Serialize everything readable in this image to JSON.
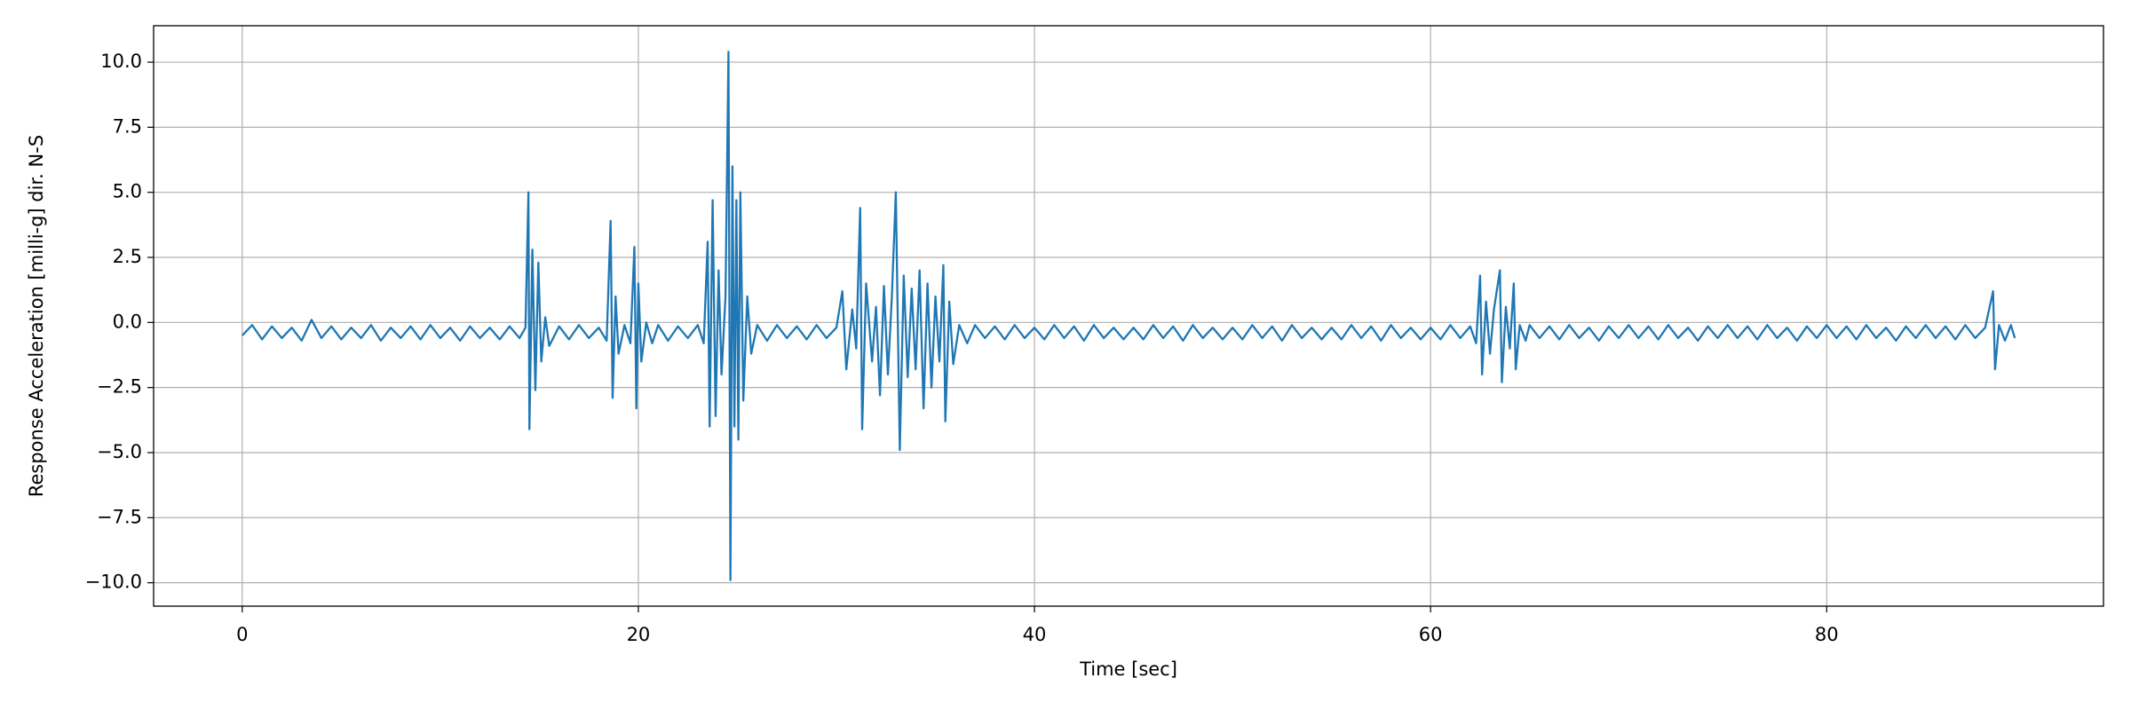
{
  "chart_data": {
    "type": "line",
    "xlabel": "Time [sec]",
    "ylabel": "Response Acceleration [milli-g] dir. N-S",
    "xlim": [
      -4.475,
      93.975
    ],
    "ylim": [
      -10.9,
      11.4
    ],
    "xticks": [
      0,
      20,
      40,
      60,
      80
    ],
    "yticks": [
      {
        "value": -10,
        "label": "−10.0"
      },
      {
        "value": -7.5,
        "label": "−7.5"
      },
      {
        "value": -5,
        "label": "−5.0"
      },
      {
        "value": -2.5,
        "label": "−2.5"
      },
      {
        "value": 0,
        "label": "0.0"
      },
      {
        "value": 2.5,
        "label": "2.5"
      },
      {
        "value": 5,
        "label": "5.0"
      },
      {
        "value": 7.5,
        "label": "7.5"
      },
      {
        "value": 10,
        "label": "10.0"
      }
    ],
    "grid": true,
    "series": [
      {
        "color": "#1f77b4",
        "x": [
          0,
          0.5,
          1,
          1.5,
          2,
          2.5,
          3,
          3.5,
          4,
          4.5,
          5,
          5.5,
          6,
          6.5,
          7,
          7.5,
          8,
          8.5,
          9,
          9.5,
          10,
          10.5,
          11,
          11.5,
          12,
          12.5,
          13,
          13.5,
          14,
          14.3,
          14.45,
          14.5,
          14.65,
          14.8,
          14.95,
          15.1,
          15.3,
          15.5,
          16,
          16.5,
          17,
          17.5,
          18,
          18.4,
          18.6,
          18.7,
          18.85,
          19,
          19.3,
          19.6,
          19.8,
          19.9,
          20,
          20.15,
          20.4,
          20.7,
          21,
          21.5,
          22,
          22.5,
          23,
          23.3,
          23.5,
          23.6,
          23.75,
          23.9,
          24.05,
          24.2,
          24.4,
          24.55,
          24.65,
          24.75,
          24.85,
          24.95,
          25.05,
          25.15,
          25.3,
          25.5,
          25.7,
          26,
          26.5,
          27,
          27.5,
          28,
          28.5,
          29,
          29.5,
          30,
          30.3,
          30.5,
          30.8,
          31,
          31.2,
          31.3,
          31.5,
          31.8,
          32,
          32.2,
          32.4,
          32.6,
          32.8,
          33,
          33.2,
          33.4,
          33.6,
          33.8,
          34,
          34.2,
          34.4,
          34.6,
          34.8,
          35,
          35.2,
          35.4,
          35.5,
          35.7,
          35.9,
          36.2,
          36.6,
          37,
          37.5,
          38,
          38.5,
          39,
          39.5,
          40,
          40.5,
          41,
          41.5,
          42,
          42.5,
          43,
          43.5,
          44,
          44.5,
          45,
          45.5,
          46,
          46.5,
          47,
          47.5,
          48,
          48.5,
          49,
          49.5,
          50,
          50.5,
          51,
          51.5,
          52,
          52.5,
          53,
          53.5,
          54,
          54.5,
          55,
          55.5,
          56,
          56.5,
          57,
          57.5,
          58,
          58.5,
          59,
          59.5,
          60,
          60.5,
          61,
          61.5,
          62,
          62.3,
          62.5,
          62.6,
          62.8,
          63,
          63.2,
          63.5,
          63.6,
          63.8,
          64,
          64.2,
          64.3,
          64.5,
          64.8,
          65,
          65.5,
          66,
          66.5,
          67,
          67.5,
          68,
          68.5,
          69,
          69.5,
          70,
          70.5,
          71,
          71.5,
          72,
          72.5,
          73,
          73.5,
          74,
          74.5,
          75,
          75.5,
          76,
          76.5,
          77,
          77.5,
          78,
          78.5,
          79,
          79.5,
          80,
          80.5,
          81,
          81.5,
          82,
          82.5,
          83,
          83.5,
          84,
          84.5,
          85,
          85.5,
          86,
          86.5,
          87,
          87.5,
          88,
          88.4,
          88.5,
          88.7,
          89,
          89.3,
          89.5
        ],
        "values": [
          -0.5,
          -0.1,
          -0.65,
          -0.15,
          -0.6,
          -0.2,
          -0.7,
          0.1,
          -0.6,
          -0.15,
          -0.65,
          -0.2,
          -0.6,
          -0.1,
          -0.7,
          -0.2,
          -0.6,
          -0.15,
          -0.65,
          -0.1,
          -0.6,
          -0.2,
          -0.7,
          -0.15,
          -0.6,
          -0.2,
          -0.65,
          -0.15,
          -0.6,
          -0.2,
          5.0,
          -4.1,
          2.8,
          -2.6,
          2.3,
          -1.5,
          0.2,
          -0.9,
          -0.15,
          -0.65,
          -0.1,
          -0.6,
          -0.2,
          -0.7,
          3.9,
          -2.9,
          1.0,
          -1.2,
          -0.1,
          -0.8,
          2.9,
          -3.3,
          1.5,
          -1.5,
          0.0,
          -0.8,
          -0.1,
          -0.7,
          -0.15,
          -0.6,
          -0.1,
          -0.8,
          3.1,
          -4.0,
          4.7,
          -3.6,
          2.0,
          -2.0,
          1.0,
          10.4,
          -9.9,
          6.0,
          -4.0,
          4.7,
          -4.5,
          5.0,
          -3.0,
          1.0,
          -1.2,
          -0.1,
          -0.7,
          -0.1,
          -0.6,
          -0.15,
          -0.65,
          -0.1,
          -0.6,
          -0.2,
          1.2,
          -1.8,
          0.5,
          -1.0,
          4.4,
          -4.1,
          1.5,
          -1.5,
          0.6,
          -2.8,
          1.4,
          -2.0,
          1.0,
          5.0,
          -4.9,
          1.8,
          -2.1,
          1.3,
          -1.8,
          2.0,
          -3.3,
          1.5,
          -2.5,
          1.0,
          -1.5,
          2.2,
          -3.8,
          0.8,
          -1.6,
          -0.1,
          -0.8,
          -0.1,
          -0.6,
          -0.15,
          -0.65,
          -0.1,
          -0.6,
          -0.2,
          -0.65,
          -0.1,
          -0.6,
          -0.15,
          -0.7,
          -0.1,
          -0.6,
          -0.2,
          -0.65,
          -0.2,
          -0.65,
          -0.1,
          -0.6,
          -0.15,
          -0.7,
          -0.1,
          -0.6,
          -0.2,
          -0.65,
          -0.2,
          -0.65,
          -0.1,
          -0.6,
          -0.15,
          -0.7,
          -0.1,
          -0.6,
          -0.2,
          -0.65,
          -0.2,
          -0.65,
          -0.1,
          -0.6,
          -0.15,
          -0.7,
          -0.1,
          -0.6,
          -0.2,
          -0.65,
          -0.2,
          -0.65,
          -0.1,
          -0.6,
          -0.15,
          -0.8,
          1.8,
          -2.0,
          0.8,
          -1.2,
          0.5,
          2.0,
          -2.3,
          0.6,
          -1.0,
          1.5,
          -1.8,
          -0.1,
          -0.7,
          -0.1,
          -0.6,
          -0.15,
          -0.65,
          -0.1,
          -0.6,
          -0.2,
          -0.7,
          -0.15,
          -0.6,
          -0.1,
          -0.6,
          -0.15,
          -0.65,
          -0.1,
          -0.6,
          -0.2,
          -0.7,
          -0.15,
          -0.6,
          -0.1,
          -0.6,
          -0.15,
          -0.65,
          -0.1,
          -0.6,
          -0.2,
          -0.7,
          -0.15,
          -0.6,
          -0.1,
          -0.6,
          -0.15,
          -0.65,
          -0.1,
          -0.6,
          -0.2,
          -0.7,
          -0.15,
          -0.6,
          -0.1,
          -0.6,
          -0.15,
          -0.65,
          -0.1,
          -0.6,
          -0.2,
          1.2,
          -1.8,
          -0.1,
          -0.7,
          -0.1,
          -0.6
        ]
      }
    ]
  }
}
